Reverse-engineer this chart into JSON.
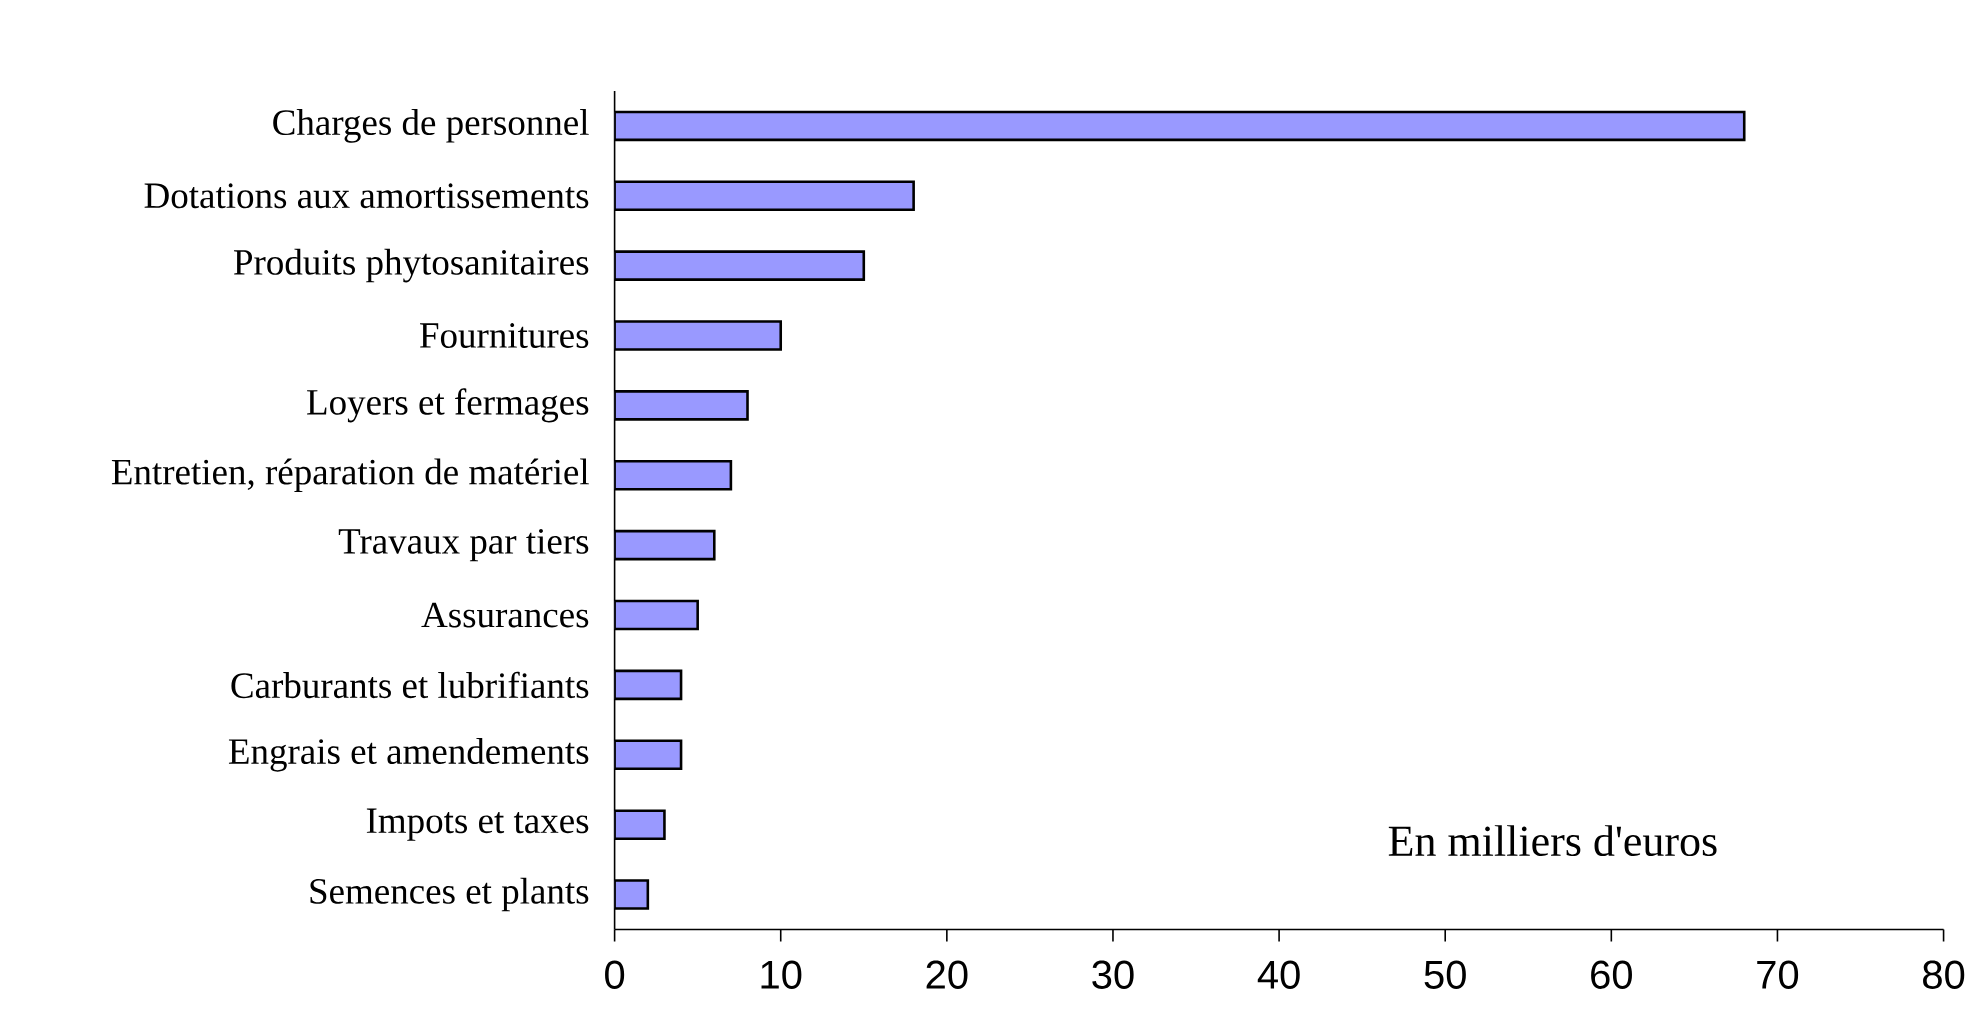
{
  "chart_data": {
    "type": "bar",
    "orientation": "horizontal",
    "categories": [
      "Charges de personnel",
      "Dotations aux amortissements",
      "Produits phytosanitaires",
      "Fournitures",
      "Loyers et fermages",
      "Entretien, réparation de matériel",
      "Travaux par tiers",
      "Assurances",
      "Carburants et lubrifiants",
      "Engrais et amendements",
      "Impots et taxes",
      "Semences et plants"
    ],
    "values": [
      68,
      18,
      15,
      10,
      8,
      7,
      6,
      5,
      4,
      4,
      3,
      2
    ],
    "color": "#9999ff",
    "xlim": [
      0,
      80
    ],
    "xticks": [
      0,
      10,
      20,
      30,
      40,
      50,
      60,
      70,
      80
    ],
    "annotations": [
      "En milliers d'euros"
    ]
  }
}
